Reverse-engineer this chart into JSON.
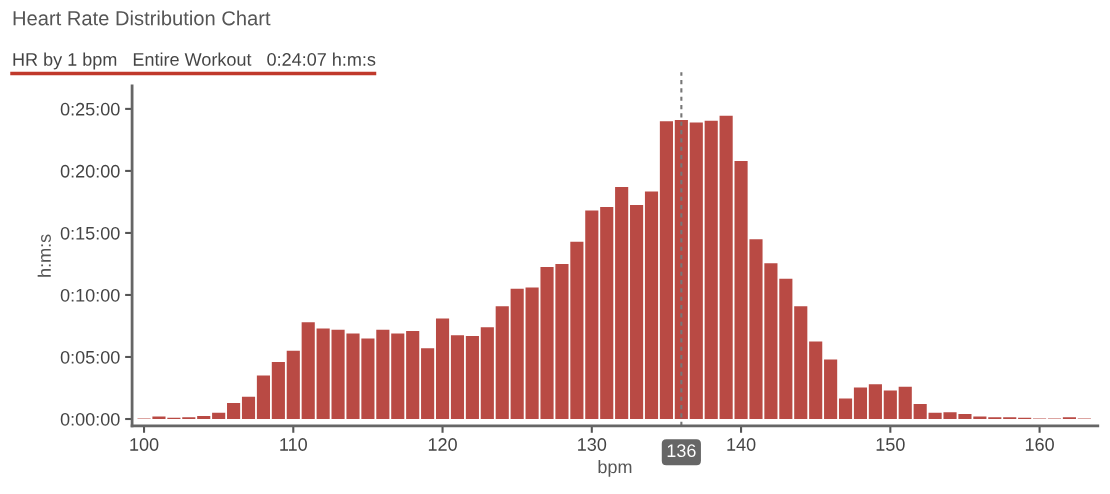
{
  "chart_data": {
    "type": "histogram",
    "title": "Heart Rate Distribution Chart",
    "subtitle": "HR by 1 bpm   Entire Workout   0:24:07 h:m:s",
    "xlabel": "bpm",
    "ylabel": "h:m:s",
    "bins": [
      99.5,
      100.5,
      101.5,
      102.5,
      103.5,
      104.5,
      105.5,
      106.5,
      107.5,
      108.5,
      109.5,
      110.5,
      111.5,
      112.5,
      113.5,
      114.5,
      115.5,
      116.5,
      117.5,
      118.5,
      119.5,
      120.5,
      121.5,
      122.5,
      123.5,
      124.5,
      125.5,
      126.5,
      127.5,
      128.5,
      129.5,
      130.5,
      131.5,
      132.5,
      133.5,
      134.5,
      135.5,
      136.5,
      137.5,
      138.5,
      139.5,
      140.5,
      141.5,
      142.5,
      143.5,
      144.5,
      145.5,
      146.5,
      147.5,
      148.5,
      149.5,
      150.5,
      151.5,
      152.5,
      153.5,
      154.5,
      155.5,
      156.5,
      157.5,
      158.5,
      159.5,
      160.5,
      161.5,
      162.5,
      163.5
    ],
    "values": [
      0.05,
      0.2,
      0.1,
      0.15,
      0.25,
      0.5,
      1.3,
      1.8,
      3.5,
      4.6,
      5.5,
      7.8,
      7.3,
      7.2,
      6.9,
      6.5,
      7.2,
      6.9,
      7.1,
      5.7,
      8.1,
      6.75,
      6.7,
      7.4,
      9.1,
      10.5,
      10.6,
      12.25,
      12.5,
      14.3,
      16.8,
      17.1,
      18.7,
      17.25,
      18.35,
      24.0,
      24.1,
      23.9,
      24.05,
      24.45,
      20.8,
      14.5,
      12.55,
      11.3,
      9.1,
      6.25,
      4.8,
      1.65,
      2.55,
      2.8,
      2.3,
      2.6,
      1.2,
      0.5,
      0.55,
      0.4,
      0.2,
      0.15,
      0.15,
      0.1,
      0.05,
      0.05,
      0.15,
      0.05
    ],
    "color": "#b94a44",
    "xlim": [
      99.2,
      163.9
    ],
    "xticks": [
      100,
      110,
      120,
      130,
      140,
      150,
      160
    ],
    "ylim": [
      -0.55,
      26.85
    ],
    "yticks": [
      {
        "value": 0,
        "label": "0:00:00"
      },
      {
        "value": 5,
        "label": "0:05:00"
      },
      {
        "value": 10,
        "label": "0:10:00"
      },
      {
        "value": 15,
        "label": "0:15:00"
      },
      {
        "value": 20,
        "label": "0:20:00"
      },
      {
        "value": 25,
        "label": "0:25:00"
      }
    ],
    "ref_lines": [
      {
        "axis": "x",
        "value": 136,
        "label": "136",
        "color": "#777777",
        "line_style": "dotted"
      }
    ],
    "grid": false,
    "legend": false
  }
}
